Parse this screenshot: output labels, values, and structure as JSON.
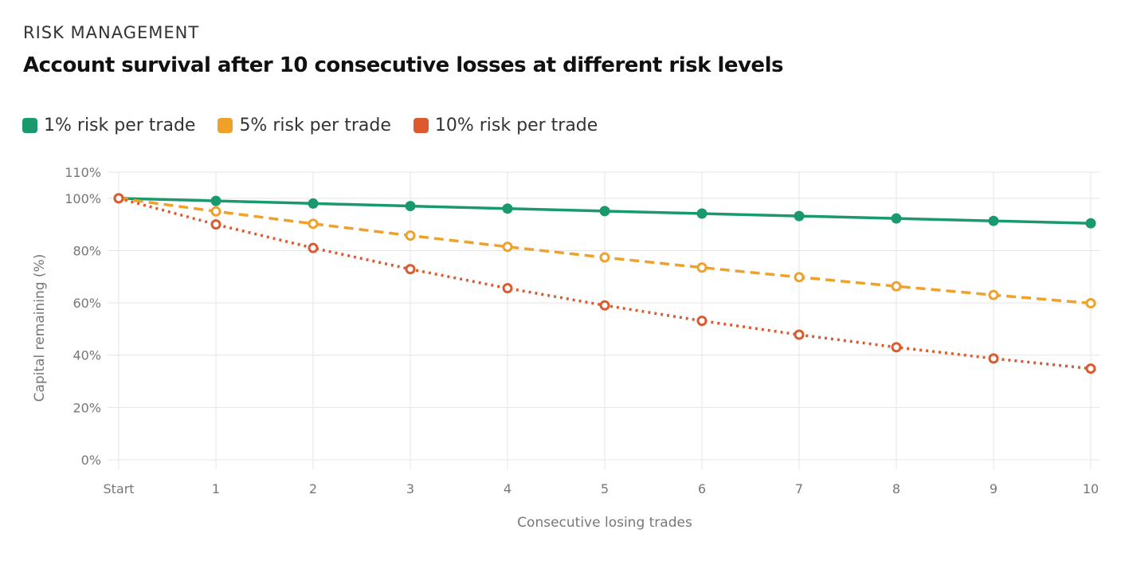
{
  "eyebrow": "RISK MANAGEMENT",
  "title": "Account survival after 10 consecutive losses at different risk levels",
  "chart_data": {
    "type": "line",
    "x": [
      "Start",
      "1",
      "2",
      "3",
      "4",
      "5",
      "6",
      "7",
      "8",
      "9",
      "10"
    ],
    "xlabel": "Consecutive losing trades",
    "ylabel": "Capital remaining (%)",
    "ylim": [
      0,
      110
    ],
    "yticks": [
      "0%",
      "20%",
      "40%",
      "60%",
      "80%",
      "100%",
      "110%"
    ],
    "ytick_values": [
      0,
      20,
      40,
      60,
      80,
      100,
      110
    ],
    "grid": true,
    "legend": "top-left",
    "series": [
      {
        "name": "1% risk per trade",
        "color": "#1a9a6c",
        "dash": "solid",
        "values": [
          100,
          99,
          98.01,
          97.03,
          96.06,
          95.1,
          94.15,
          93.21,
          92.27,
          91.35,
          90.44
        ]
      },
      {
        "name": "5% risk per trade",
        "color": "#f0a12a",
        "dash": "dashed",
        "values": [
          100,
          95,
          90.25,
          85.74,
          81.45,
          77.38,
          73.51,
          69.83,
          66.34,
          63.02,
          59.87
        ]
      },
      {
        "name": "10% risk per trade",
        "color": "#dc5a2e",
        "dash": "dotted",
        "values": [
          100,
          90,
          81,
          72.9,
          65.61,
          59.05,
          53.14,
          47.83,
          43.05,
          38.74,
          34.87
        ]
      }
    ]
  }
}
